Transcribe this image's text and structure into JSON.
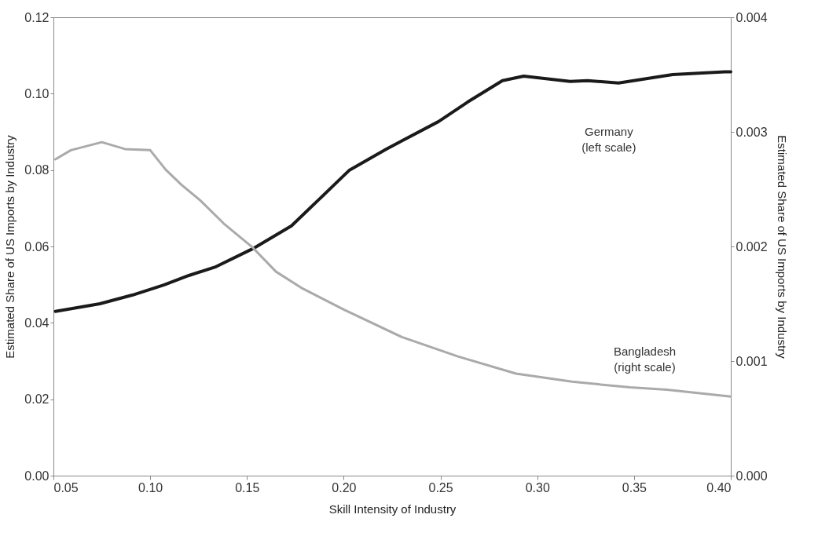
{
  "chart_data": {
    "type": "line",
    "xlabel": "Skill Intensity of Industry",
    "ylabel": "Estimated Share of US Imports by Industry",
    "y2label": "Estimated Share of US Imports by Industry",
    "xlim": [
      0.05,
      0.4
    ],
    "xticks": [
      0.05,
      {
        "value": 0.1,
        "label": "0.10"
      },
      0.15,
      {
        "value": 0.2,
        "label": "0.20"
      },
      0.25,
      {
        "value": 0.3,
        "label": "0.30"
      },
      0.35,
      {
        "value": 0.4,
        "label": "0.40"
      }
    ],
    "ylim": [
      0,
      0.12
    ],
    "yticks": [
      {
        "value": 0,
        "label": "0.00"
      },
      0.02,
      0.04,
      0.06,
      0.08,
      {
        "value": 0.1,
        "label": "0.10"
      },
      0.12
    ],
    "y2lim": [
      0,
      0.004
    ],
    "y2ticks": [
      {
        "value": 0,
        "label": "0.000"
      },
      0.001,
      0.002,
      0.003,
      0.004
    ],
    "grid": false,
    "legend": false,
    "marker": "none",
    "line_style": "solid",
    "series": [
      {
        "color": "#1a1a1a",
        "axis": "y",
        "x": [
          0.051,
          0.074,
          0.091,
          0.107,
          0.12,
          0.134,
          0.153,
          0.173,
          0.187,
          0.203,
          0.222,
          0.249,
          0.264,
          0.282,
          0.293,
          0.317,
          0.326,
          0.342,
          0.37,
          0.397,
          0.4
        ],
        "values": [
          0.043,
          0.045,
          0.0473,
          0.0499,
          0.0524,
          0.0547,
          0.0594,
          0.0654,
          0.0722,
          0.08,
          0.0855,
          0.0927,
          0.0978,
          0.1034,
          0.1046,
          0.1032,
          0.1034,
          0.1028,
          0.105,
          0.1057,
          0.1057
        ]
      },
      {
        "color": "#aaaaaa",
        "axis": "y2",
        "x": [
          0.051,
          0.059,
          0.075,
          0.087,
          0.1,
          0.108,
          0.116,
          0.126,
          0.138,
          0.153,
          0.165,
          0.178,
          0.2,
          0.23,
          0.259,
          0.289,
          0.318,
          0.348,
          0.367,
          0.4
        ],
        "values": [
          0.00276,
          0.00284,
          0.00291,
          0.00285,
          0.00284,
          0.00267,
          0.00254,
          0.0024,
          0.0022,
          0.00199,
          0.00178,
          0.00164,
          0.00145,
          0.00121,
          0.00104,
          0.00089,
          0.00082,
          0.00077,
          0.00075,
          0.00069
        ]
      }
    ],
    "annotations": [
      "Germany\n(left scale)",
      "Bangladesh\n(right scale)"
    ]
  }
}
